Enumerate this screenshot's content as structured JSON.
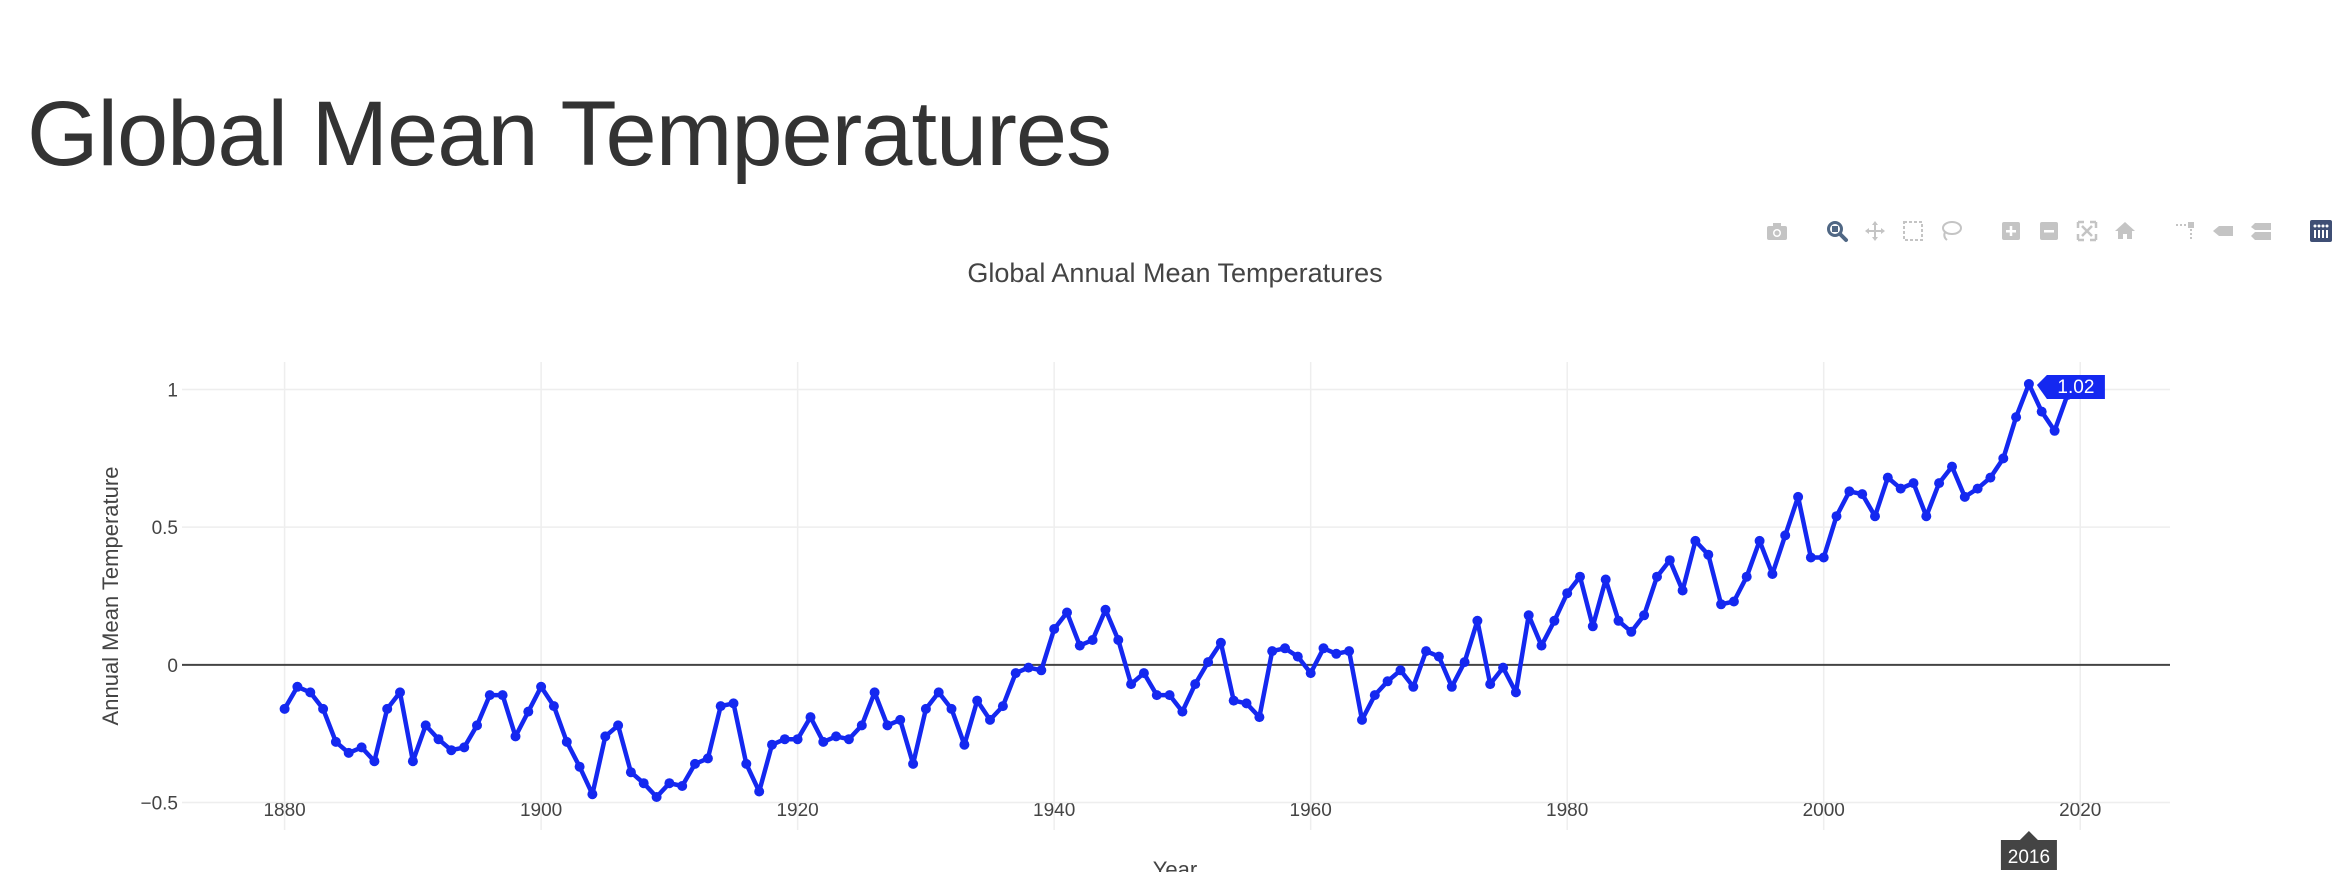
{
  "page": {
    "title": "Global Mean Temperatures"
  },
  "modebar": {
    "groups": [
      [
        "camera-icon"
      ],
      [
        "zoom-icon",
        "pan-icon",
        "box-select-icon",
        "lasso-select-icon"
      ],
      [
        "zoom-in-icon",
        "zoom-out-icon",
        "autoscale-icon",
        "reset-axes-icon"
      ],
      [
        "spike-lines-icon",
        "hover-closest-icon",
        "hover-compare-icon"
      ],
      [
        "plotly-logo-icon"
      ]
    ],
    "active": "zoom-icon",
    "colors": {
      "idle": "#c4c4c4",
      "active": "#506784",
      "logo": "#3f4f75"
    }
  },
  "chart_data": {
    "type": "line",
    "title": "Global Annual Mean Temperatures",
    "xlabel": "Year",
    "ylabel": "Annual Mean Temperature",
    "xlim": [
      1872,
      2027
    ],
    "ylim": [
      -0.6,
      1.1
    ],
    "xticks": [
      1880,
      1900,
      1920,
      1940,
      1960,
      1980,
      2000,
      2020
    ],
    "yticks": [
      -0.5,
      0,
      0.5,
      1
    ],
    "ytick_labels": [
      "−0.5",
      "0",
      "0.5",
      "1"
    ],
    "grid": true,
    "zero_line": true,
    "line_color": "#1428f0",
    "series": [
      {
        "x": [
          1880,
          1881,
          1882,
          1883,
          1884,
          1885,
          1886,
          1887,
          1888,
          1889,
          1890,
          1891,
          1892,
          1893,
          1894,
          1895,
          1896,
          1897,
          1898,
          1899,
          1900,
          1901,
          1902,
          1903,
          1904,
          1905,
          1906,
          1907,
          1908,
          1909,
          1910,
          1911,
          1912,
          1913,
          1914,
          1915,
          1916,
          1917,
          1918,
          1919,
          1920,
          1921,
          1922,
          1923,
          1924,
          1925,
          1926,
          1927,
          1928,
          1929,
          1930,
          1931,
          1932,
          1933,
          1934,
          1935,
          1936,
          1937,
          1938,
          1939,
          1940,
          1941,
          1942,
          1943,
          1944,
          1945,
          1946,
          1947,
          1948,
          1949,
          1950,
          1951,
          1952,
          1953,
          1954,
          1955,
          1956,
          1957,
          1958,
          1959,
          1960,
          1961,
          1962,
          1963,
          1964,
          1965,
          1966,
          1967,
          1968,
          1969,
          1970,
          1971,
          1972,
          1973,
          1974,
          1975,
          1976,
          1977,
          1978,
          1979,
          1980,
          1981,
          1982,
          1983,
          1984,
          1985,
          1986,
          1987,
          1988,
          1989,
          1990,
          1991,
          1992,
          1993,
          1994,
          1995,
          1996,
          1997,
          1998,
          1999,
          2000,
          2001,
          2002,
          2003,
          2004,
          2005,
          2006,
          2007,
          2008,
          2009,
          2010,
          2011,
          2012,
          2013,
          2014,
          2015,
          2016,
          2017,
          2018,
          2019
        ],
        "y": [
          -0.16,
          -0.08,
          -0.1,
          -0.16,
          -0.28,
          -0.32,
          -0.3,
          -0.35,
          -0.16,
          -0.1,
          -0.35,
          -0.22,
          -0.27,
          -0.31,
          -0.3,
          -0.22,
          -0.11,
          -0.11,
          -0.26,
          -0.17,
          -0.08,
          -0.15,
          -0.28,
          -0.37,
          -0.47,
          -0.26,
          -0.22,
          -0.39,
          -0.43,
          -0.48,
          -0.43,
          -0.44,
          -0.36,
          -0.34,
          -0.15,
          -0.14,
          -0.36,
          -0.46,
          -0.29,
          -0.27,
          -0.27,
          -0.19,
          -0.28,
          -0.26,
          -0.27,
          -0.22,
          -0.1,
          -0.22,
          -0.2,
          -0.36,
          -0.16,
          -0.1,
          -0.16,
          -0.29,
          -0.13,
          -0.2,
          -0.15,
          -0.03,
          -0.01,
          -0.02,
          0.13,
          0.19,
          0.07,
          0.09,
          0.2,
          0.09,
          -0.07,
          -0.03,
          -0.11,
          -0.11,
          -0.17,
          -0.07,
          0.01,
          0.08,
          -0.13,
          -0.14,
          -0.19,
          0.05,
          0.06,
          0.03,
          -0.03,
          0.06,
          0.04,
          0.05,
          -0.2,
          -0.11,
          -0.06,
          -0.02,
          -0.08,
          0.05,
          0.03,
          -0.08,
          0.01,
          0.16,
          -0.07,
          -0.01,
          -0.1,
          0.18,
          0.07,
          0.16,
          0.26,
          0.32,
          0.14,
          0.31,
          0.16,
          0.12,
          0.18,
          0.32,
          0.38,
          0.27,
          0.45,
          0.4,
          0.22,
          0.23,
          0.32,
          0.45,
          0.33,
          0.47,
          0.61,
          0.39,
          0.39,
          0.54,
          0.63,
          0.62,
          0.54,
          0.68,
          0.64,
          0.66,
          0.54,
          0.66,
          0.72,
          0.61,
          0.64,
          0.68,
          0.75,
          0.9,
          1.02,
          0.92,
          0.85,
          0.98
        ]
      }
    ],
    "hover": {
      "x_label": "2016",
      "y_label": "1.02",
      "index": 136
    }
  }
}
